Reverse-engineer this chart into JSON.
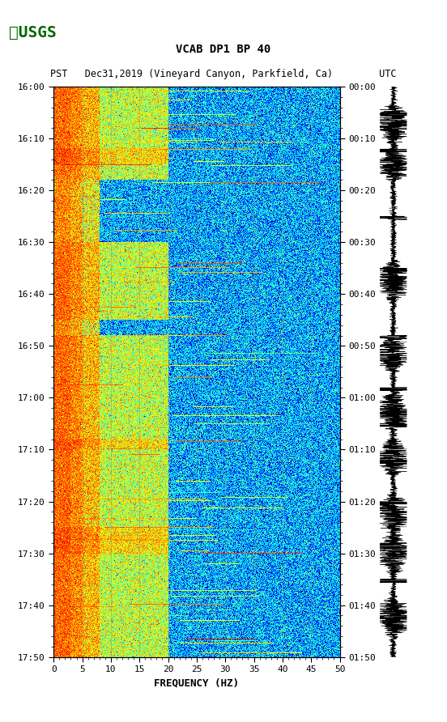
{
  "title_line1": "VCAB DP1 BP 40",
  "title_line2": "PST   Dec31,2019 (Vineyard Canyon, Parkfield, Ca)        UTC",
  "xlabel": "FREQUENCY (HZ)",
  "freq_min": 0,
  "freq_max": 50,
  "time_start_pst": "16:00",
  "time_end_pst": "17:50",
  "time_start_utc": "00:00",
  "time_end_utc": "01:50",
  "pst_ticks": [
    "16:00",
    "16:10",
    "16:20",
    "16:30",
    "16:40",
    "16:50",
    "17:00",
    "17:10",
    "17:20",
    "17:30",
    "17:40",
    "17:50"
  ],
  "utc_ticks": [
    "00:00",
    "00:10",
    "00:20",
    "00:30",
    "00:40",
    "00:50",
    "01:00",
    "01:10",
    "01:20",
    "01:30",
    "01:40",
    "01:50"
  ],
  "freq_ticks": [
    0,
    5,
    10,
    15,
    20,
    25,
    30,
    35,
    40,
    45,
    50
  ],
  "bg_color": "#ffffff",
  "spectrogram_colormap": "jet",
  "n_time": 720,
  "n_freq": 500,
  "seed": 42
}
